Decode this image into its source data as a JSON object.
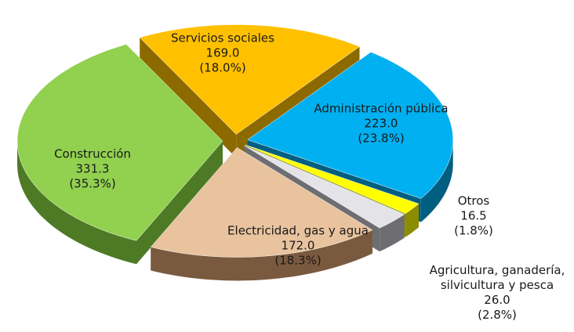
{
  "chart_data": {
    "type": "pie3d",
    "categories": [
      "Servicios sociales",
      "Administración pública",
      "Otros",
      "Agricultura, ganadería, silvicultura y pesca",
      "Electricidad, gas y agua",
      "Construcción"
    ],
    "values": [
      169,
      223,
      16.5,
      26,
      172,
      331.3
    ],
    "value_labels": [
      "169.0",
      "223.0",
      "16.5",
      "26.0",
      "172.0",
      "331.3"
    ],
    "percents": [
      18.0,
      23.8,
      1.8,
      2.8,
      18.3,
      35.3
    ],
    "percent_labels": [
      "(18.0%)",
      "(23.8%)",
      "(1.8%)",
      "(2.8%)",
      "(18.3%)",
      "(35.3%)"
    ],
    "colors": [
      "#FFC000",
      "#00B0F0",
      "#FFFF00",
      "#E4E4E8",
      "#E8C39E",
      "#92D050"
    ],
    "side_colors": [
      "#8C6A00",
      "#005F80",
      "#8C8C00",
      "#6E6E72",
      "#7A5A3E",
      "#4E7A25"
    ]
  }
}
